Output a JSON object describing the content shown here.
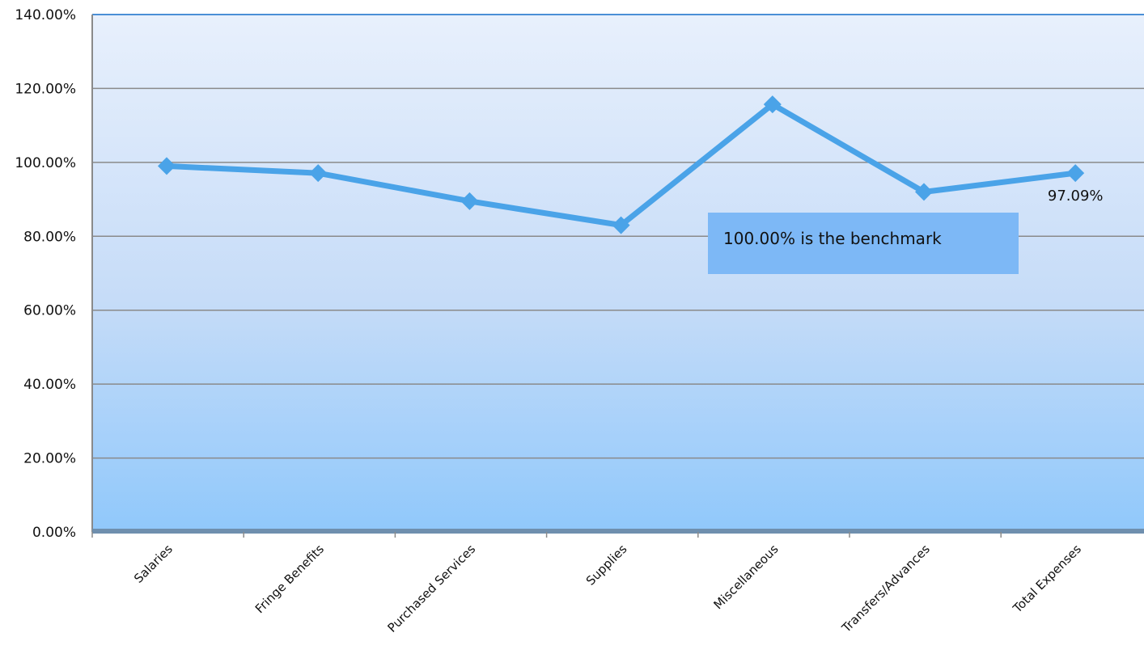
{
  "chart_data": {
    "type": "line",
    "categories": [
      "Salaries",
      "Fringe Benefits",
      "Purchased  Services",
      "Supplies",
      "Miscellaneous",
      "Transfers/Advances",
      "Total Expenses"
    ],
    "series": [
      {
        "values": [
          99.0,
          97.09,
          89.5,
          83.0,
          115.7,
          92.0,
          97.09
        ]
      }
    ],
    "ylim": [
      0,
      140
    ],
    "yticks": [
      0,
      20,
      40,
      60,
      80,
      100,
      120,
      140
    ],
    "ytick_labels": [
      "0.00%",
      "20.00%",
      "40.00%",
      "60.00%",
      "80.00%",
      "100.00%",
      "120.00%",
      "140.00%"
    ],
    "data_labels": [
      {
        "index": 6,
        "text": "97.09%"
      }
    ],
    "annotation": "100.00% is the benchmark",
    "grid": true,
    "colors": {
      "line": "#4aa3e8",
      "plot_top": "#e8f0fc",
      "plot_bottom": "#90c8fb",
      "annotation_fill": "#7db8f6",
      "grid": "#8a8a8a",
      "border": "#4a8fd6"
    }
  }
}
